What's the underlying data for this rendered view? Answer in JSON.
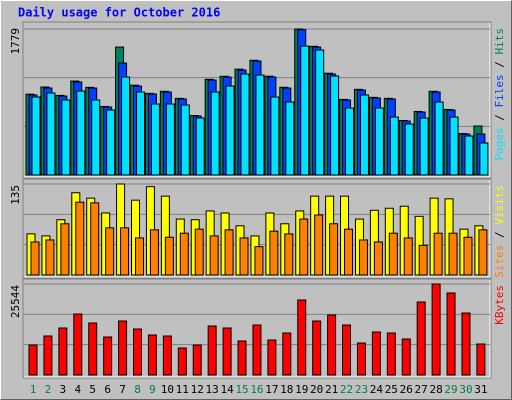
{
  "chart_data": [
    {
      "type": "bar",
      "title": "Daily usage for October 2016",
      "ylim": [
        0,
        1779
      ],
      "yticks": [
        1779
      ],
      "grid": true,
      "series": [
        {
          "name": "Pages",
          "color": "#00e0ff",
          "values": [
            950,
            999,
            914,
            1023,
            914,
            792,
            1194,
            1011,
            865,
            865,
            853,
            694,
            1011,
            1084,
            1230,
            1218,
            950,
            889,
            1571,
            1523,
            1206,
            816,
            975,
            816,
            706,
            621,
            694,
            889,
            706,
            475,
            390
          ]
        },
        {
          "name": "Files",
          "color": "#0040ff",
          "values": [
            975,
            1060,
            962,
            1133,
            1060,
            828,
            1364,
            1084,
            987,
            1011,
            926,
            719,
            1157,
            1194,
            1279,
            1389,
            1194,
            1060,
            1770,
            1559,
            1230,
            914,
            1035,
            938,
            926,
            658,
            767,
            1011,
            792,
            499,
            499
          ]
        },
        {
          "name": "Hits",
          "color": "#00805c",
          "values": [
            985,
            1072,
            970,
            1145,
            1068,
            835,
            1559,
            1094,
            995,
            1020,
            934,
            725,
            1166,
            1203,
            1290,
            1398,
            1204,
            1069,
            1779,
            1568,
            1240,
            921,
            1044,
            946,
            934,
            664,
            774,
            1020,
            799,
            505,
            597
          ]
        }
      ]
    },
    {
      "type": "bar",
      "ylim": [
        0,
        135
      ],
      "yticks": [
        135
      ],
      "grid": true,
      "series": [
        {
          "name": "Sites",
          "color": "#ff8000",
          "values": [
            49,
            52,
            76,
            108,
            107,
            70,
            70,
            55,
            67,
            56,
            62,
            68,
            58,
            67,
            55,
            42,
            65,
            61,
            83,
            89,
            76,
            68,
            52,
            49,
            62,
            55,
            44,
            62,
            62,
            56,
            67
          ]
        },
        {
          "name": "Visits",
          "color": "#ffff00",
          "values": [
            61,
            58,
            82,
            122,
            114,
            92,
            135,
            111,
            131,
            117,
            83,
            82,
            95,
            92,
            73,
            58,
            92,
            76,
            95,
            117,
            117,
            117,
            83,
            96,
            99,
            102,
            87,
            114,
            113,
            68,
            73
          ]
        }
      ]
    },
    {
      "type": "bar",
      "ylim": [
        0,
        25544
      ],
      "yticks": [
        25544
      ],
      "grid": true,
      "series": [
        {
          "name": "KBytes",
          "color": "#ff0000",
          "values": [
            8421,
            10947,
            13193,
            17123,
            14596,
            10667,
            15158,
            12912,
            11228,
            10947,
            7579,
            8421,
            13754,
            13193,
            9544,
            14035,
            9825,
            11789,
            21053,
            15158,
            16842,
            14035,
            8982,
            12070,
            11789,
            10105,
            20491,
            25544,
            23017,
            17403,
            8702
          ]
        }
      ],
      "categories": [
        1,
        2,
        3,
        4,
        5,
        6,
        7,
        8,
        9,
        10,
        11,
        12,
        13,
        14,
        15,
        16,
        17,
        18,
        19,
        20,
        21,
        22,
        23,
        24,
        25,
        26,
        27,
        28,
        29,
        30,
        31
      ],
      "category_colors": [
        "#008040",
        "#008040",
        "#000000",
        "#000000",
        "#000000",
        "#000000",
        "#000000",
        "#008040",
        "#008040",
        "#000000",
        "#000000",
        "#000000",
        "#000000",
        "#000000",
        "#008040",
        "#008040",
        "#000000",
        "#000000",
        "#000000",
        "#000000",
        "#000000",
        "#008040",
        "#008040",
        "#000000",
        "#000000",
        "#000000",
        "#000000",
        "#000000",
        "#008040",
        "#008040",
        "#000000"
      ]
    }
  ]
}
